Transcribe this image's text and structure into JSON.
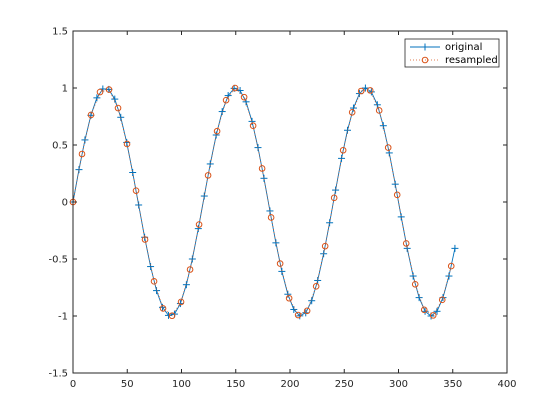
{
  "chart_data": {
    "type": "line",
    "xlim": [
      0,
      400
    ],
    "ylim": [
      -1.5,
      1.5
    ],
    "x_ticks": [
      "0",
      "50",
      "100",
      "150",
      "200",
      "250",
      "300",
      "350",
      "400"
    ],
    "y_ticks": [
      "-1.5",
      "-1",
      "-0.5",
      "0",
      "0.5",
      "1",
      "1.5"
    ],
    "grid": false,
    "legend_position": "top-right",
    "series": [
      {
        "name": "original",
        "style": "solid line with plus markers",
        "color": "#0072bd",
        "x_start": 0,
        "x_step": 5.5,
        "count": 65,
        "period": 120,
        "function": "sine"
      },
      {
        "name": "resampled",
        "style": "dotted line with circle markers",
        "color": "#d95319",
        "x_start": 0,
        "x_step": 8.3,
        "count": 43,
        "period": 120,
        "function": "sine"
      }
    ]
  }
}
